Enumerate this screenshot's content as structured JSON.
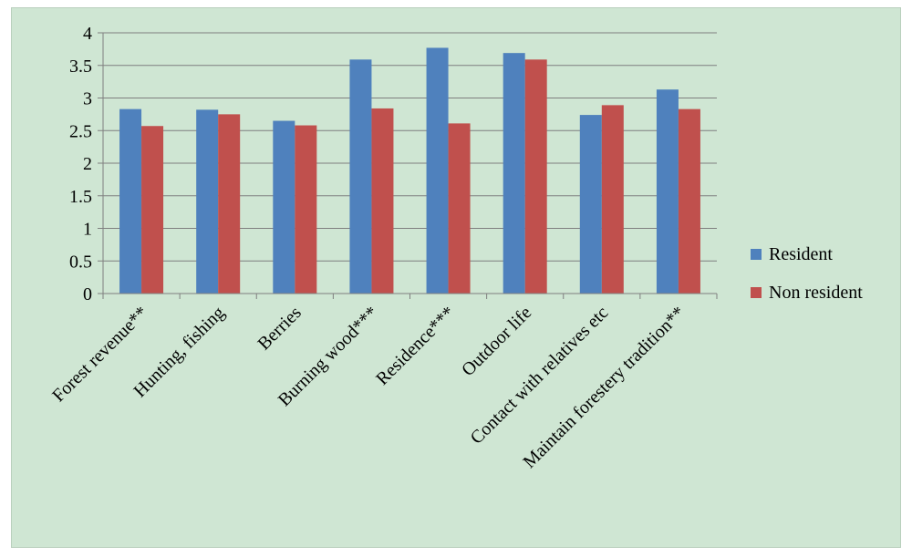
{
  "colors": {
    "background": "#cfe6d3",
    "resident": "#4f81bd",
    "non_resident": "#c0504d",
    "gridline": "#7f7f7f"
  },
  "chart_data": {
    "type": "bar",
    "categories": [
      "Forest revenue**",
      "Hunting, fishing",
      "Berries",
      "Burning wood***",
      "Residence***",
      "Outdoor life",
      "Contact with relatives etc",
      "Maintain forestery tradition**"
    ],
    "series": [
      {
        "name": "Resident",
        "color": "#4f81bd",
        "values": [
          2.83,
          2.82,
          2.65,
          3.59,
          3.77,
          3.69,
          2.74,
          3.13
        ]
      },
      {
        "name": "Non resident",
        "color": "#c0504d",
        "values": [
          2.57,
          2.75,
          2.58,
          2.84,
          2.61,
          3.59,
          2.89,
          2.83
        ]
      }
    ],
    "ylim": [
      0,
      4
    ],
    "yticks": [
      "0",
      "0.5",
      "1",
      "1.5",
      "2",
      "2.5",
      "3",
      "3.5",
      "4"
    ],
    "grid": true,
    "legend": "right"
  }
}
